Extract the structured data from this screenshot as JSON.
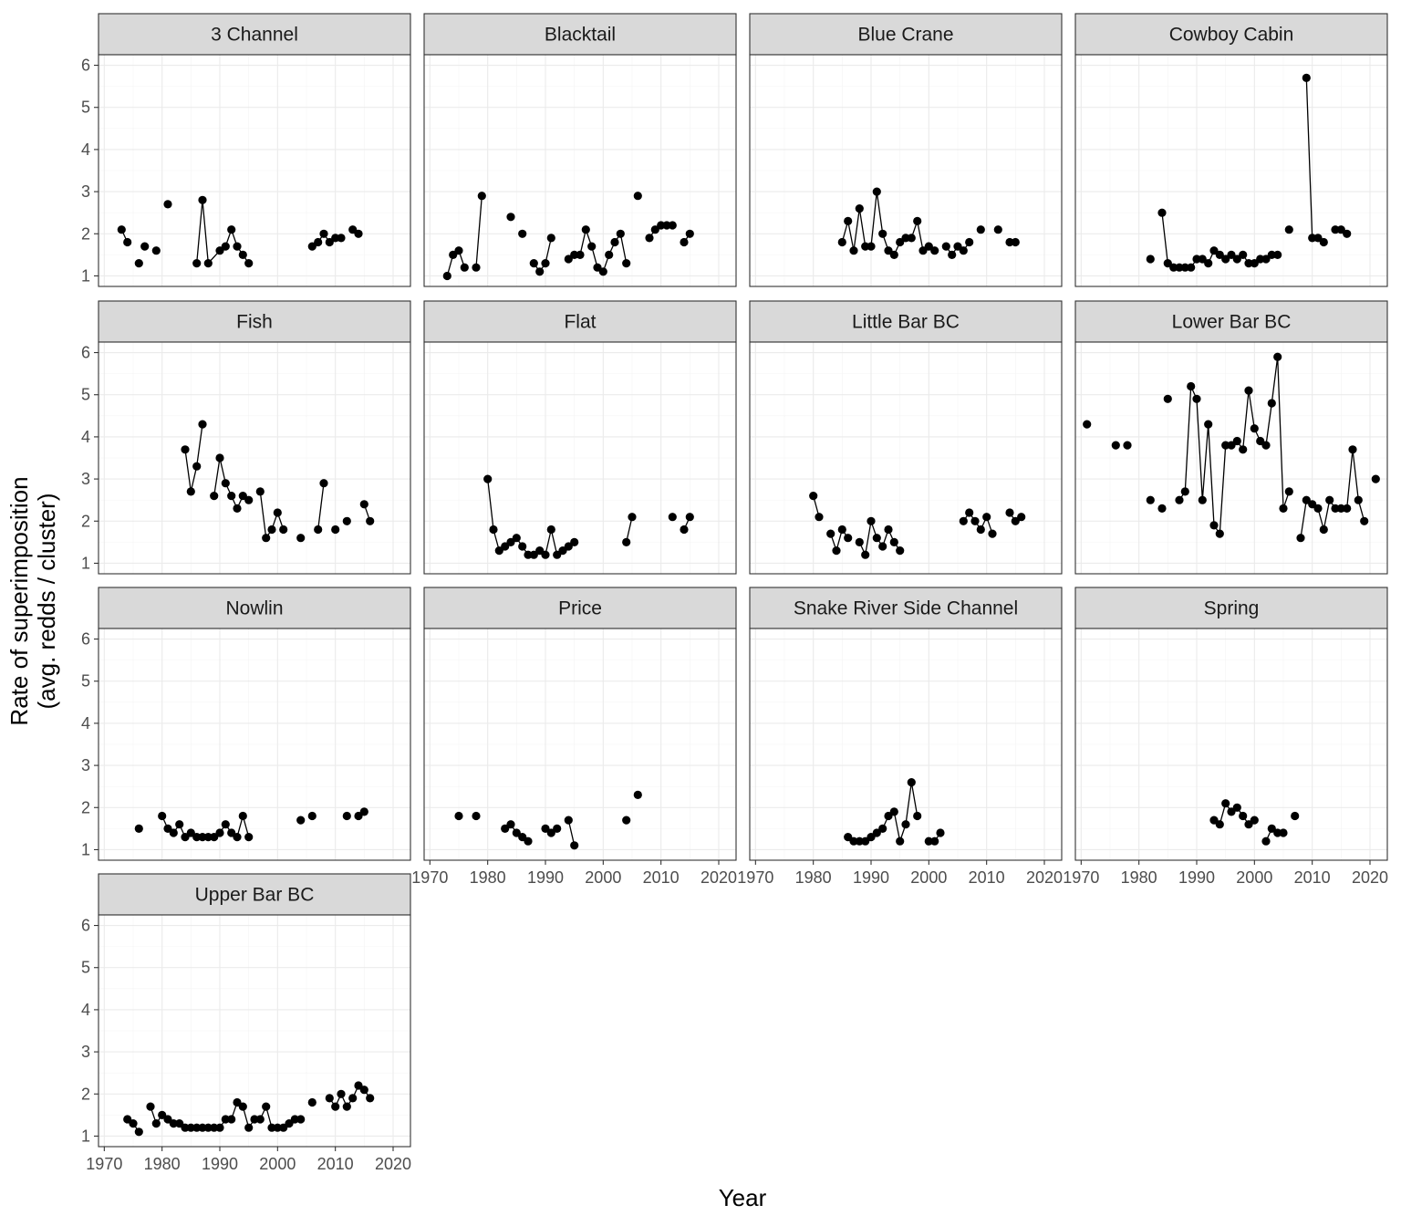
{
  "chart_data": {
    "type": "scatter",
    "subtype": "faceted line+point",
    "xlabel": "Year",
    "ylabel": "Rate of superimposition\n(avg. redds / cluster)",
    "xlim": [
      1969,
      2023
    ],
    "ylim": [
      0.75,
      6.25
    ],
    "x_ticks": [
      1970,
      1980,
      1990,
      2000,
      2010,
      2020
    ],
    "y_ticks": [
      1,
      2,
      3,
      4,
      5,
      6
    ],
    "grid": true,
    "panels": [
      {
        "name": "3 Channel",
        "x": [
          1973,
          1974,
          1976,
          1977,
          1979,
          1981,
          1986,
          1987,
          1988,
          1990,
          1991,
          1992,
          1993,
          1994,
          1995,
          2006,
          2007,
          2008,
          2009,
          2010,
          2011,
          2013,
          2014
        ],
        "y": [
          2.1,
          1.8,
          1.3,
          1.7,
          1.6,
          2.7,
          1.3,
          2.8,
          1.3,
          1.6,
          1.7,
          2.1,
          1.7,
          1.5,
          1.3,
          1.7,
          1.8,
          2.0,
          1.8,
          1.9,
          1.9,
          2.1,
          2.0
        ],
        "segments": [
          [
            0,
            1
          ],
          [
            6,
            14
          ],
          [
            15,
            20
          ]
        ]
      },
      {
        "name": "Blacktail",
        "x": [
          1973,
          1974,
          1975,
          1976,
          1978,
          1979,
          1984,
          1986,
          1988,
          1989,
          1990,
          1991,
          1994,
          1995,
          1996,
          1997,
          1998,
          1999,
          2000,
          2001,
          2002,
          2003,
          2004,
          2006,
          2008,
          2009,
          2010,
          2011,
          2012,
          2014,
          2015
        ],
        "y": [
          1.0,
          1.5,
          1.6,
          1.2,
          1.2,
          2.9,
          2.4,
          2.0,
          1.3,
          1.1,
          1.3,
          1.9,
          1.4,
          1.5,
          1.5,
          2.1,
          1.7,
          1.2,
          1.1,
          1.5,
          1.8,
          2.0,
          1.3,
          2.9,
          1.9,
          2.1,
          2.2,
          2.2,
          2.2,
          1.8,
          2.0
        ],
        "segments": [
          [
            0,
            3
          ],
          [
            4,
            5
          ],
          [
            8,
            11
          ],
          [
            12,
            22
          ],
          [
            24,
            28
          ],
          [
            29,
            30
          ]
        ]
      },
      {
        "name": "Blue Crane",
        "x": [
          1985,
          1986,
          1987,
          1988,
          1989,
          1990,
          1991,
          1992,
          1993,
          1994,
          1995,
          1996,
          1997,
          1998,
          1999,
          2000,
          2001,
          2003,
          2004,
          2005,
          2006,
          2007,
          2009,
          2012,
          2014,
          2015
        ],
        "y": [
          1.8,
          2.3,
          1.6,
          2.6,
          1.7,
          1.7,
          3.0,
          2.0,
          1.6,
          1.5,
          1.8,
          1.9,
          1.9,
          2.3,
          1.6,
          1.7,
          1.6,
          1.7,
          1.5,
          1.7,
          1.6,
          1.8,
          2.1,
          2.1,
          1.8,
          1.8
        ],
        "segments": [
          [
            0,
            16
          ],
          [
            17,
            21
          ]
        ]
      },
      {
        "name": "Cowboy Cabin",
        "x": [
          1982,
          1984,
          1985,
          1986,
          1987,
          1988,
          1989,
          1990,
          1991,
          1992,
          1993,
          1994,
          1995,
          1996,
          1997,
          1998,
          1999,
          2000,
          2001,
          2002,
          2003,
          2004,
          2006,
          2009,
          2010,
          2011,
          2012,
          2014,
          2015,
          2016
        ],
        "y": [
          1.4,
          2.5,
          1.3,
          1.2,
          1.2,
          1.2,
          1.2,
          1.4,
          1.4,
          1.3,
          1.6,
          1.5,
          1.4,
          1.5,
          1.4,
          1.5,
          1.3,
          1.3,
          1.4,
          1.4,
          1.5,
          1.5,
          2.1,
          5.7,
          1.9,
          1.9,
          1.8,
          2.1,
          2.1,
          2.0
        ],
        "segments": [
          [
            1,
            21
          ],
          [
            23,
            26
          ],
          [
            27,
            29
          ]
        ]
      },
      {
        "name": "Fish",
        "x": [
          1984,
          1985,
          1986,
          1987,
          1989,
          1990,
          1991,
          1992,
          1993,
          1994,
          1995,
          1997,
          1998,
          1999,
          2000,
          2001,
          2004,
          2007,
          2008,
          2010,
          2012,
          2015,
          2016
        ],
        "y": [
          3.7,
          2.7,
          3.3,
          4.3,
          2.6,
          3.5,
          2.9,
          2.6,
          2.3,
          2.6,
          2.5,
          2.7,
          1.6,
          1.8,
          2.2,
          1.8,
          1.6,
          1.8,
          2.9,
          1.8,
          2.0,
          2.4,
          2.0
        ],
        "segments": [
          [
            0,
            3
          ],
          [
            4,
            10
          ],
          [
            11,
            15
          ],
          [
            17,
            18
          ],
          [
            21,
            22
          ]
        ]
      },
      {
        "name": "Flat",
        "x": [
          1980,
          1981,
          1982,
          1983,
          1984,
          1985,
          1986,
          1987,
          1988,
          1989,
          1990,
          1991,
          1992,
          1993,
          1994,
          1995,
          2004,
          2005,
          2012,
          2014,
          2015
        ],
        "y": [
          3.0,
          1.8,
          1.3,
          1.4,
          1.5,
          1.6,
          1.4,
          1.2,
          1.2,
          1.3,
          1.2,
          1.8,
          1.2,
          1.3,
          1.4,
          1.5,
          1.5,
          2.1,
          2.1,
          1.8,
          2.1
        ],
        "segments": [
          [
            0,
            15
          ],
          [
            16,
            17
          ],
          [
            19,
            20
          ]
        ]
      },
      {
        "name": "Little Bar BC",
        "x": [
          1980,
          1981,
          1983,
          1984,
          1985,
          1986,
          1988,
          1989,
          1990,
          1991,
          1992,
          1993,
          1994,
          1995,
          2006,
          2007,
          2008,
          2009,
          2010,
          2011,
          2014,
          2015,
          2016
        ],
        "y": [
          2.6,
          2.1,
          1.7,
          1.3,
          1.8,
          1.6,
          1.5,
          1.2,
          2.0,
          1.6,
          1.4,
          1.8,
          1.5,
          1.3,
          2.0,
          2.2,
          2.0,
          1.8,
          2.1,
          1.7,
          2.2,
          2.0,
          2.1
        ],
        "segments": [
          [
            0,
            1
          ],
          [
            2,
            5
          ],
          [
            6,
            13
          ],
          [
            14,
            19
          ],
          [
            20,
            22
          ]
        ]
      },
      {
        "name": "Lower Bar BC",
        "x": [
          1971,
          1976,
          1978,
          1982,
          1984,
          1985,
          1987,
          1988,
          1989,
          1990,
          1991,
          1992,
          1993,
          1994,
          1995,
          1996,
          1997,
          1998,
          1999,
          2000,
          2001,
          2002,
          2003,
          2004,
          2005,
          2006,
          2008,
          2009,
          2010,
          2011,
          2012,
          2013,
          2014,
          2015,
          2016,
          2017,
          2018,
          2019,
          2021
        ],
        "y": [
          4.3,
          3.8,
          3.8,
          2.5,
          2.3,
          4.9,
          2.5,
          2.7,
          5.2,
          4.9,
          2.5,
          4.3,
          1.9,
          1.7,
          3.8,
          3.8,
          3.9,
          3.7,
          5.1,
          4.2,
          3.9,
          3.8,
          4.8,
          5.9,
          2.3,
          2.7,
          1.6,
          2.5,
          2.4,
          2.3,
          1.8,
          2.5,
          2.3,
          2.3,
          2.3,
          3.7,
          2.5,
          2.0,
          3.0
        ],
        "segments": [
          [
            6,
            25
          ],
          [
            26,
            37
          ]
        ]
      },
      {
        "name": "Nowlin",
        "x": [
          1976,
          1980,
          1981,
          1982,
          1983,
          1984,
          1985,
          1986,
          1987,
          1988,
          1989,
          1990,
          1991,
          1992,
          1993,
          1994,
          1995,
          2004,
          2006,
          2012,
          2014,
          2015
        ],
        "y": [
          1.5,
          1.8,
          1.5,
          1.4,
          1.6,
          1.3,
          1.4,
          1.3,
          1.3,
          1.3,
          1.3,
          1.4,
          1.6,
          1.4,
          1.3,
          1.8,
          1.3,
          1.7,
          1.8,
          1.8,
          1.8,
          1.9
        ],
        "segments": [
          [
            1,
            16
          ],
          [
            20,
            21
          ]
        ]
      },
      {
        "name": "Price",
        "x": [
          1975,
          1978,
          1983,
          1984,
          1985,
          1986,
          1987,
          1990,
          1991,
          1992,
          1994,
          1995,
          2004,
          2006
        ],
        "y": [
          1.8,
          1.8,
          1.5,
          1.6,
          1.4,
          1.3,
          1.2,
          1.5,
          1.4,
          1.5,
          1.7,
          1.1,
          1.7,
          2.3
        ],
        "segments": [
          [
            2,
            6
          ],
          [
            7,
            9
          ],
          [
            10,
            11
          ]
        ]
      },
      {
        "name": "Snake River Side Channel",
        "x": [
          1986,
          1987,
          1988,
          1989,
          1990,
          1991,
          1992,
          1993,
          1994,
          1995,
          1996,
          1997,
          1998,
          2000,
          2001,
          2002
        ],
        "y": [
          1.3,
          1.2,
          1.2,
          1.2,
          1.3,
          1.4,
          1.5,
          1.8,
          1.9,
          1.2,
          1.6,
          2.6,
          1.8,
          1.2,
          1.2,
          1.4
        ],
        "segments": [
          [
            0,
            12
          ],
          [
            13,
            15
          ]
        ]
      },
      {
        "name": "Spring",
        "x": [
          1993,
          1994,
          1995,
          1996,
          1997,
          1998,
          1999,
          2000,
          2002,
          2003,
          2004,
          2005,
          2007
        ],
        "y": [
          1.7,
          1.6,
          2.1,
          1.9,
          2.0,
          1.8,
          1.6,
          1.7,
          1.2,
          1.5,
          1.4,
          1.4,
          1.8
        ],
        "segments": [
          [
            0,
            7
          ],
          [
            8,
            11
          ]
        ]
      },
      {
        "name": "Upper Bar BC",
        "x": [
          1974,
          1975,
          1976,
          1978,
          1979,
          1980,
          1981,
          1982,
          1983,
          1984,
          1985,
          1986,
          1987,
          1988,
          1989,
          1990,
          1991,
          1992,
          1993,
          1994,
          1995,
          1996,
          1997,
          1998,
          1999,
          2000,
          2001,
          2002,
          2003,
          2004,
          2006,
          2009,
          2010,
          2011,
          2012,
          2013,
          2014,
          2015,
          2016
        ],
        "y": [
          1.4,
          1.3,
          1.1,
          1.7,
          1.3,
          1.5,
          1.4,
          1.3,
          1.3,
          1.2,
          1.2,
          1.2,
          1.2,
          1.2,
          1.2,
          1.2,
          1.4,
          1.4,
          1.8,
          1.7,
          1.2,
          1.4,
          1.4,
          1.7,
          1.2,
          1.2,
          1.2,
          1.3,
          1.4,
          1.4,
          1.8,
          1.9,
          1.7,
          2.0,
          1.7,
          1.9,
          2.2,
          2.1,
          1.9
        ],
        "segments": [
          [
            0,
            2
          ],
          [
            3,
            29
          ],
          [
            31,
            38
          ]
        ]
      }
    ]
  }
}
